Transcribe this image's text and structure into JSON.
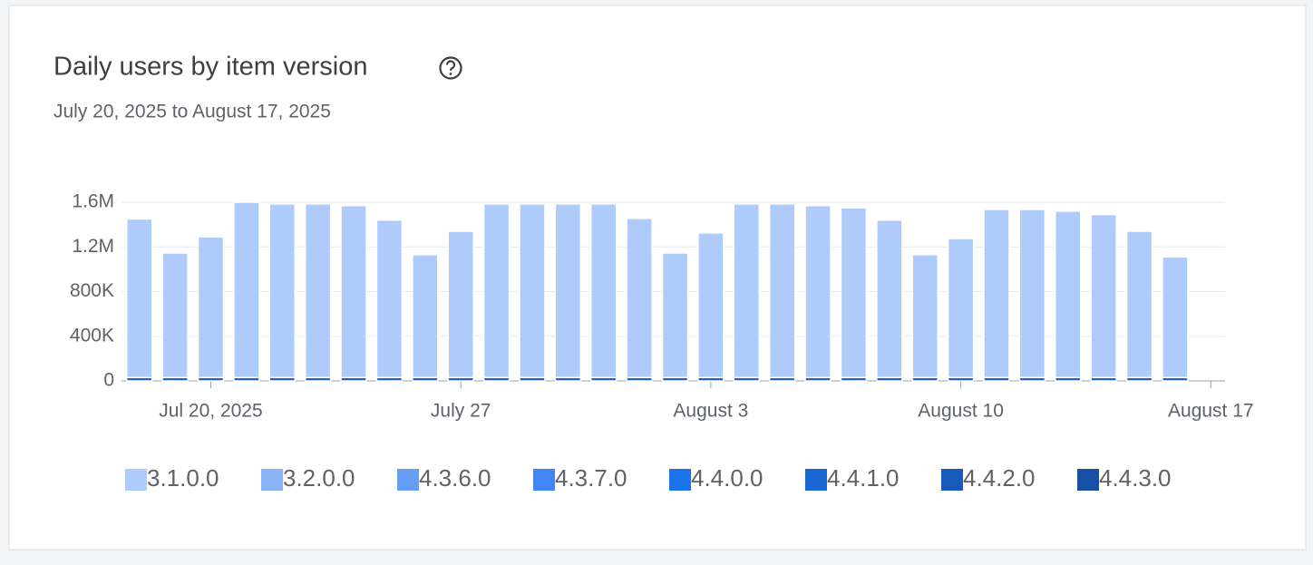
{
  "chart_data": {
    "type": "stacked_bar",
    "title": "Daily users by item version",
    "subtitle": "July 20, 2025 to August 17, 2025",
    "categories": [
      null,
      null,
      "Jul 20, 2025",
      null,
      null,
      null,
      null,
      null,
      null,
      "July 27",
      null,
      null,
      null,
      null,
      null,
      null,
      "August 3",
      null,
      null,
      null,
      null,
      null,
      null,
      "August 10",
      null,
      null,
      null,
      null,
      null,
      null,
      "August 17"
    ],
    "series": [
      {
        "name": "3.1.0.0",
        "color": "#aecbfa",
        "values": [
          1420000,
          1115000,
          1260000,
          1570000,
          1555000,
          1555000,
          1540000,
          1410000,
          1100000,
          1310000,
          1555000,
          1555000,
          1555000,
          1555000,
          1425000,
          1115000,
          1295000,
          1555000,
          1555000,
          1540000,
          1520000,
          1410000,
          1100000,
          1245000,
          1505000,
          1505000,
          1490000,
          1460000,
          1310000,
          1080000,
          null
        ]
      },
      {
        "name": "3.2.0.0",
        "color": "#8ab4f8",
        "values": [
          0,
          0,
          0,
          0,
          0,
          0,
          0,
          0,
          0,
          0,
          0,
          0,
          0,
          0,
          0,
          0,
          0,
          0,
          0,
          0,
          0,
          0,
          0,
          0,
          0,
          0,
          0,
          0,
          0,
          0,
          null
        ]
      },
      {
        "name": "4.3.6.0",
        "color": "#669df6",
        "values": [
          0,
          0,
          0,
          0,
          0,
          0,
          0,
          0,
          0,
          0,
          0,
          0,
          0,
          0,
          0,
          0,
          0,
          0,
          0,
          0,
          0,
          0,
          0,
          0,
          0,
          0,
          0,
          0,
          0,
          0,
          null
        ]
      },
      {
        "name": "4.3.7.0",
        "color": "#4285f4",
        "values": [
          0,
          0,
          0,
          0,
          0,
          0,
          0,
          0,
          0,
          0,
          0,
          0,
          0,
          0,
          0,
          0,
          0,
          0,
          0,
          0,
          0,
          0,
          0,
          0,
          0,
          0,
          0,
          0,
          0,
          0,
          null
        ]
      },
      {
        "name": "4.4.0.0",
        "color": "#1a73e8",
        "values": [
          0,
          0,
          0,
          0,
          0,
          0,
          0,
          0,
          0,
          0,
          0,
          0,
          0,
          0,
          0,
          0,
          0,
          0,
          0,
          0,
          0,
          0,
          0,
          0,
          0,
          0,
          0,
          0,
          0,
          0,
          null
        ]
      },
      {
        "name": "4.4.1.0",
        "color": "#1967d2",
        "values": [
          0,
          0,
          0,
          0,
          0,
          0,
          0,
          0,
          0,
          0,
          0,
          0,
          0,
          0,
          0,
          0,
          0,
          0,
          0,
          0,
          0,
          0,
          0,
          0,
          0,
          0,
          0,
          0,
          0,
          0,
          null
        ]
      },
      {
        "name": "4.4.2.0",
        "color": "#185abc",
        "values": [
          30000,
          30000,
          30000,
          30000,
          30000,
          30000,
          30000,
          30000,
          30000,
          30000,
          30000,
          30000,
          30000,
          30000,
          30000,
          30000,
          30000,
          30000,
          30000,
          30000,
          30000,
          30000,
          30000,
          30000,
          30000,
          30000,
          30000,
          30000,
          30000,
          30000,
          null
        ]
      },
      {
        "name": "4.4.3.0",
        "color": "#174ea6",
        "values": [
          0,
          0,
          0,
          0,
          0,
          0,
          0,
          0,
          0,
          0,
          0,
          0,
          0,
          0,
          0,
          0,
          0,
          0,
          0,
          0,
          0,
          0,
          0,
          0,
          0,
          0,
          0,
          0,
          0,
          0,
          null
        ]
      }
    ],
    "ylim": [
      0,
      1600000
    ],
    "yticks": [
      0,
      {
        "value": 400000,
        "label": "400K"
      },
      {
        "value": 800000,
        "label": "800K"
      },
      {
        "value": 1200000,
        "label": "1.2M"
      },
      {
        "value": 1600000,
        "label": "1.6M"
      }
    ],
    "grid": true
  }
}
